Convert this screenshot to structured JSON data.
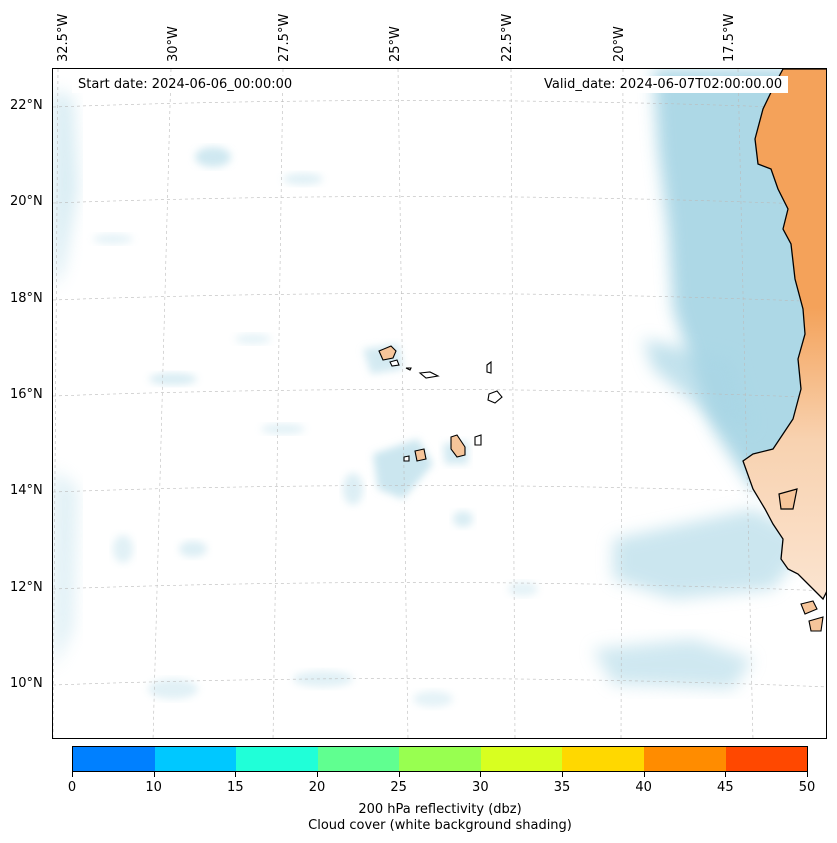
{
  "map": {
    "start_date": "Start date: 2024-06-06_00:00:00",
    "valid_date": "Valid_date: 2024-06-07T02:00:00.00",
    "lon_labels": [
      "32.5°W",
      "30°W",
      "27.5°W",
      "25°W",
      "22.5°W",
      "20°W",
      "17.5°W"
    ],
    "lat_labels": [
      "22°N",
      "20°N",
      "18°N",
      "16°N",
      "14°N",
      "12°N",
      "10°N"
    ],
    "colors": {
      "cloud": "#a9d6e5",
      "land": "#f4a25a",
      "land_light": "#f6c59a",
      "coast": "#000000",
      "grid": "#bbbbbb"
    }
  },
  "colorbar": {
    "tick_labels": [
      "0",
      "10",
      "15",
      "20",
      "25",
      "30",
      "35",
      "40",
      "45",
      "50"
    ],
    "colors": [
      "#0080ff",
      "#00c8ff",
      "#20ffd8",
      "#60ff90",
      "#98ff50",
      "#d8ff20",
      "#ffd800",
      "#ff8c00",
      "#ff4800"
    ],
    "label_line1": "200 hPa reflectivity (dbz)",
    "label_line2": "Cloud cover (white background shading)"
  }
}
